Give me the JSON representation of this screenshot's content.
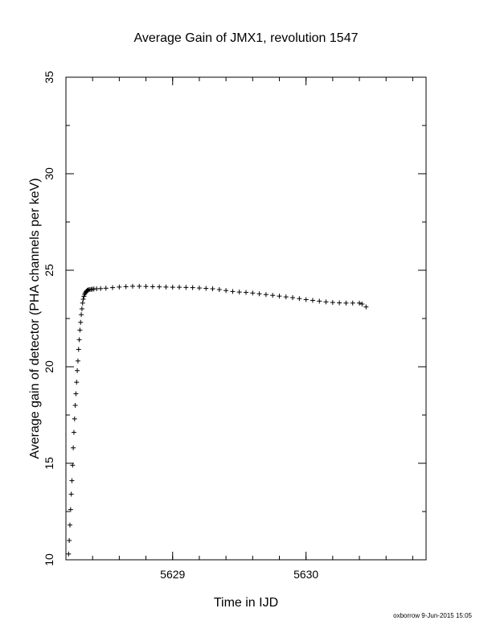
{
  "chart_data": {
    "type": "scatter",
    "title": "Average Gain of JMX1, revolution 1547",
    "xlabel": "Time in IJD",
    "ylabel": "Average gain of detector (PHA channels per keV)",
    "xlim": [
      5628.2,
      5630.9
    ],
    "ylim": [
      10,
      35
    ],
    "x_ticks": [
      5629,
      5630
    ],
    "x_tick_labels": [
      "5629",
      "5630"
    ],
    "y_ticks": [
      10,
      15,
      20,
      25,
      30,
      35
    ],
    "y_tick_labels": [
      "10",
      "15",
      "20",
      "25",
      "30",
      "35"
    ],
    "grid": false,
    "marker": "plus",
    "series": [
      {
        "x": [
          5628.22,
          5628.225,
          5628.23,
          5628.235,
          5628.24,
          5628.245,
          5628.25,
          5628.255,
          5628.26,
          5628.265,
          5628.27,
          5628.275,
          5628.28,
          5628.285,
          5628.29,
          5628.295,
          5628.3,
          5628.305,
          5628.31,
          5628.315,
          5628.32,
          5628.325,
          5628.33,
          5628.335,
          5628.34,
          5628.345,
          5628.35,
          5628.355,
          5628.36,
          5628.365,
          5628.37,
          5628.38,
          5628.39,
          5628.4,
          5628.41,
          5628.43,
          5628.46,
          5628.5,
          5628.55,
          5628.6,
          5628.65,
          5628.7,
          5628.75,
          5628.8,
          5628.85,
          5628.9,
          5628.95,
          5629.0,
          5629.05,
          5629.1,
          5629.15,
          5629.2,
          5629.25,
          5629.3,
          5629.35,
          5629.4,
          5629.45,
          5629.5,
          5629.55,
          5629.6,
          5629.65,
          5629.7,
          5629.75,
          5629.8,
          5629.85,
          5629.9,
          5629.95,
          5630.0,
          5630.05,
          5630.1,
          5630.15,
          5630.2,
          5630.25,
          5630.3,
          5630.35,
          5630.4,
          5630.42,
          5630.45
        ],
        "y": [
          10.3,
          11.0,
          11.8,
          12.6,
          13.4,
          14.1,
          14.9,
          15.8,
          16.6,
          17.3,
          18.0,
          18.6,
          19.2,
          19.8,
          20.3,
          20.9,
          21.4,
          21.9,
          22.3,
          22.7,
          23.0,
          23.3,
          23.5,
          23.65,
          23.75,
          23.82,
          23.88,
          23.92,
          23.95,
          23.97,
          23.99,
          24.0,
          24.01,
          24.02,
          24.03,
          24.04,
          24.05,
          24.07,
          24.1,
          24.13,
          24.15,
          24.17,
          24.17,
          24.16,
          24.15,
          24.14,
          24.13,
          24.12,
          24.12,
          24.11,
          24.1,
          24.08,
          24.06,
          24.04,
          24.0,
          23.95,
          23.9,
          23.87,
          23.85,
          23.82,
          23.78,
          23.74,
          23.7,
          23.66,
          23.62,
          23.58,
          23.53,
          23.48,
          23.44,
          23.4,
          23.36,
          23.33,
          23.31,
          23.3,
          23.3,
          23.3,
          23.25,
          23.1
        ]
      }
    ]
  },
  "footer": "oxborrow 9-Jun-2015 15:05"
}
